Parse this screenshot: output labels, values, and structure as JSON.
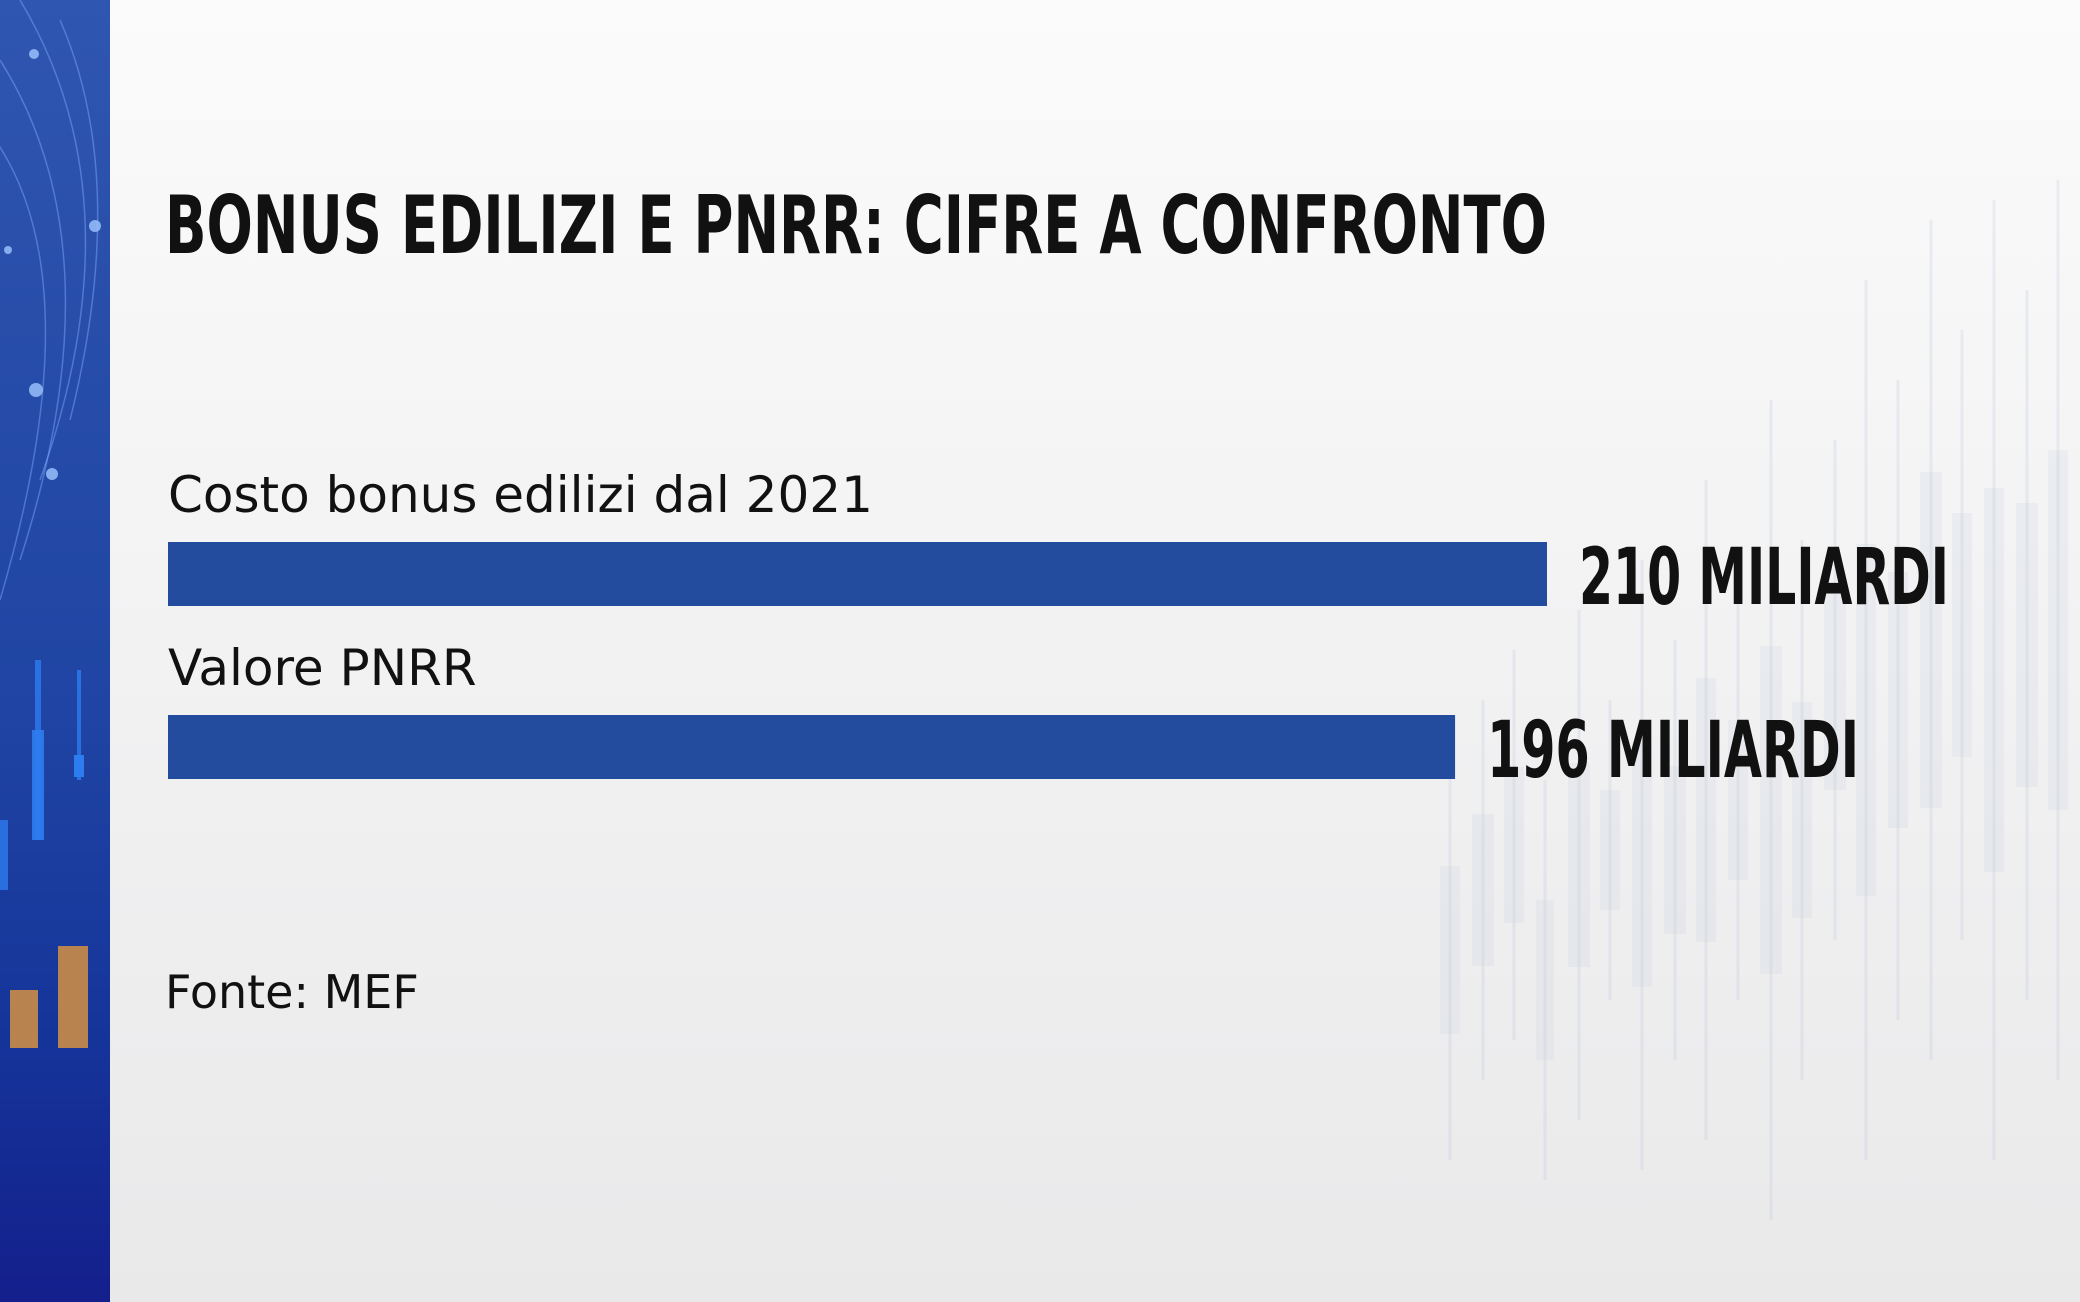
{
  "chart_data": {
    "type": "bar",
    "orientation": "horizontal",
    "title": "BONUS EDILIZI E PNRR: CIFRE A CONFRONTO",
    "categories": [
      "Costo bonus edilizi dal 2021",
      "Valore PNRR"
    ],
    "values": [
      210,
      196
    ],
    "value_labels": [
      "210 MILIARDI",
      "196 MILIARDI"
    ],
    "unit": "MILIARDI",
    "xlim": [
      0,
      210
    ],
    "source": "Fonte: MEF",
    "grid": false,
    "legend": "none",
    "colors": {
      "bar": "#234c9f",
      "text": "#111111",
      "band": "#1f44a3"
    }
  }
}
